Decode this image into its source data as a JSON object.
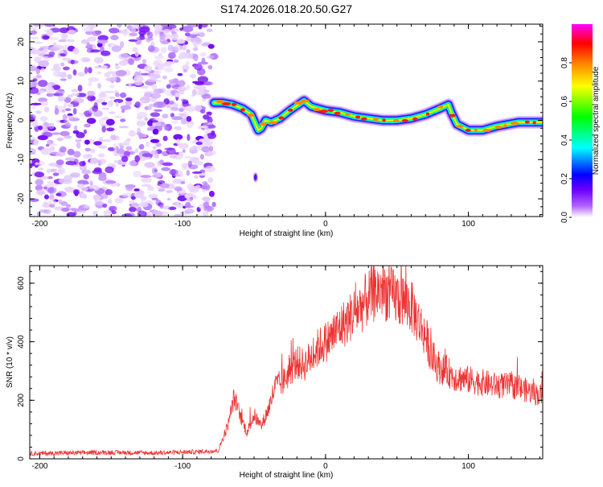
{
  "title": "S174.2026.018.20.50.G27",
  "chart_data": [
    {
      "type": "heatmap",
      "title": "S174.2026.018.20.50.G27",
      "xlabel": "Height of straight line (km)",
      "ylabel": "Frequency (Hz)",
      "xlim": [
        -207,
        152
      ],
      "ylim": [
        -24.5,
        24.5
      ],
      "xticks": [
        -200,
        -100,
        0,
        100
      ],
      "yticks": [
        -20,
        -10,
        0,
        10,
        20
      ],
      "noise_region_x": [
        -207,
        -78
      ],
      "ridge": {
        "x": [
          -78,
          -72,
          -65,
          -58,
          -52,
          -47,
          -45,
          -42,
          -38,
          -32,
          -25,
          -15,
          -10,
          0,
          10,
          20,
          30,
          40,
          50,
          60,
          70,
          80,
          86,
          88,
          92,
          100,
          110,
          120,
          135,
          152
        ],
        "y": [
          4.5,
          4.5,
          4.0,
          3.0,
          1.5,
          -2.5,
          -2.0,
          0.0,
          -0.5,
          0.5,
          2.5,
          5.0,
          3.5,
          2.5,
          2.0,
          1.0,
          0.5,
          0.0,
          0.0,
          0.5,
          1.5,
          3.0,
          4.0,
          2.0,
          -1.0,
          -2.5,
          -2.5,
          -1.5,
          -0.5,
          -0.5
        ]
      },
      "isolated_blob": {
        "x": -49,
        "y": -14.5
      },
      "colorbar": {
        "label": "Normalized spectral amplitude",
        "ticks": [
          "0.0",
          "0.2",
          "0.4",
          "0.6",
          "0.8"
        ],
        "range": [
          0,
          1
        ],
        "colors": [
          "#ffffff",
          "#8000ff",
          "#0000ff",
          "#00ffff",
          "#00ff00",
          "#ffff00",
          "#ff8000",
          "#ff0000",
          "#ff00ff"
        ]
      }
    },
    {
      "type": "line",
      "xlabel": "Height of straight line (km)",
      "ylabel": "SNR (10 * v/v)",
      "xlim": [
        -207,
        152
      ],
      "ylim": [
        0,
        660
      ],
      "xticks": [
        -200,
        -100,
        0,
        100
      ],
      "yticks": [
        0,
        200,
        400,
        600
      ],
      "color": "#ee3333",
      "series": [
        {
          "name": "SNR",
          "x": [
            -207,
            -180,
            -150,
            -120,
            -90,
            -75,
            -68,
            -64,
            -60,
            -55,
            -50,
            -45,
            -40,
            -35,
            -30,
            -25,
            -20,
            -15,
            -10,
            -5,
            0,
            5,
            10,
            15,
            20,
            25,
            30,
            35,
            40,
            45,
            50,
            55,
            60,
            65,
            70,
            75,
            80,
            85,
            90,
            100,
            110,
            120,
            130,
            140,
            152
          ],
          "y": [
            18,
            20,
            22,
            20,
            24,
            28,
            120,
            210,
            150,
            90,
            150,
            110,
            170,
            250,
            260,
            300,
            330,
            320,
            350,
            380,
            400,
            420,
            450,
            470,
            500,
            520,
            550,
            570,
            580,
            560,
            550,
            540,
            520,
            470,
            420,
            340,
            310,
            300,
            280,
            270,
            260,
            250,
            250,
            235,
            215
          ]
        }
      ]
    }
  ]
}
